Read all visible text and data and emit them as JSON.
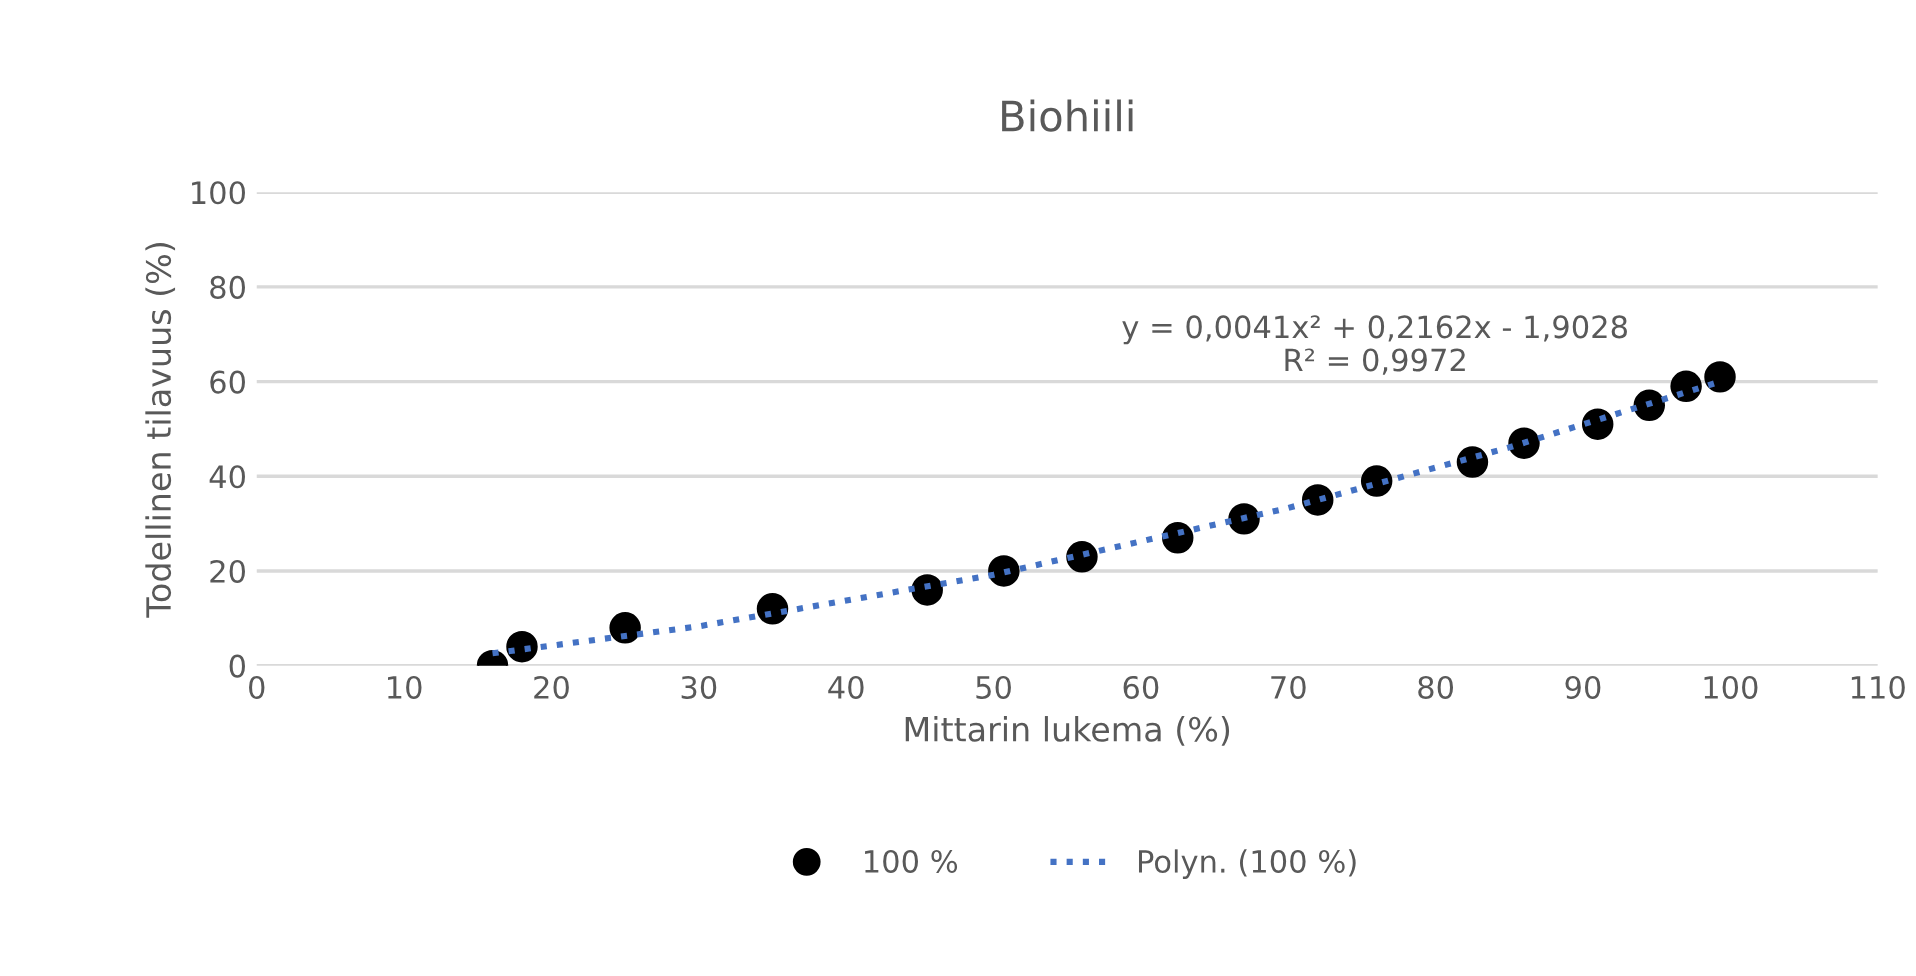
{
  "chart_data": {
    "type": "scatter",
    "title": "Biohiili",
    "xlabel": "Mittarin lukema (%)",
    "ylabel": "Todellinen tilavuus (%)",
    "xlim": [
      0,
      110
    ],
    "xticks": [
      0,
      10,
      20,
      30,
      40,
      50,
      60,
      70,
      80,
      90,
      100,
      110
    ],
    "ylim": [
      0,
      100
    ],
    "yticks": [
      0,
      20,
      40,
      60,
      80,
      100
    ],
    "grid": "y",
    "legend": "bottom",
    "annotations": [
      "y = 0,0041x² + 0,2162x - 1,9028",
      "R² = 0,9972"
    ],
    "series": [
      {
        "name": "100 %",
        "color": "#000000",
        "marker": "circle",
        "x": [
          16,
          18,
          25,
          35,
          45.5,
          50.7,
          56,
          62.5,
          67,
          72,
          76,
          82.5,
          86,
          91,
          94.5,
          97,
          99.3
        ],
        "values": [
          0,
          4,
          8,
          12,
          16,
          20,
          23,
          27,
          31,
          35,
          39,
          43,
          47,
          51,
          55,
          59,
          61
        ]
      },
      {
        "name": "Polyn. (100 %)",
        "type": "line",
        "color": "#4472c4",
        "line_style": "dotted",
        "marker": "none",
        "x": [
          16,
          30,
          50,
          70,
          85,
          99.3
        ],
        "values": [
          2.6,
          8.3,
          19.2,
          33.3,
          46.1,
          60.0
        ]
      }
    ]
  }
}
